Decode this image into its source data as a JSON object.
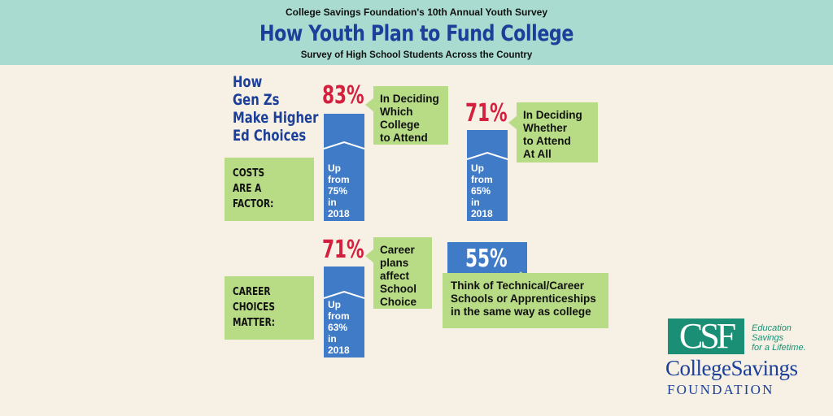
{
  "header": {
    "eyebrow": "College Savings Foundation's 10th Annual Youth Survey",
    "title": "How Youth Plan to Fund College",
    "subtitle": "Survey of High School Students Across the Country"
  },
  "side_title": [
    "How",
    "Gen Zs",
    "Make Higher",
    "Ed Choices"
  ],
  "costs_section": {
    "label": [
      "COSTS",
      "ARE A",
      "FACTOR:"
    ],
    "stat1": {
      "percent": "83%",
      "callout": [
        "In Deciding",
        "Which",
        "College",
        "to Attend"
      ],
      "bar_text": [
        "Up",
        "from",
        "75%",
        "in",
        "2018"
      ]
    },
    "stat2": {
      "percent": "71%",
      "callout": [
        "In Deciding",
        "Whether",
        "to Attend",
        "At All"
      ],
      "bar_text": [
        "Up",
        "from",
        "65%",
        "in",
        "2018"
      ]
    }
  },
  "career_section": {
    "label": [
      "CAREER",
      "CHOICES",
      "MATTER:"
    ],
    "stat1": {
      "percent": "71%",
      "callout": [
        "Career",
        "plans",
        "affect",
        "School",
        "Choice"
      ],
      "bar_text": [
        "Up",
        "from",
        "63%",
        "in",
        "2018"
      ]
    },
    "stat2": {
      "percent": "55%",
      "callout": [
        "Think of Technical/Career",
        "Schools or Apprenticeships",
        "in the same way as college"
      ]
    }
  },
  "logo": {
    "mark": "CSF",
    "tagline": [
      "Education",
      "Savings",
      "for a Lifetime."
    ],
    "name": "CollegeSavings",
    "sub": "FOUNDATION"
  },
  "colors": {
    "header_bg": "#a9dbd0",
    "page_bg": "#f6f1e4",
    "title_blue": "#1c3f9a",
    "bar_blue": "#3f7bc6",
    "callout_green": "#b8dc85",
    "percent_red": "#d4203f",
    "logo_teal": "#1b8f76"
  }
}
